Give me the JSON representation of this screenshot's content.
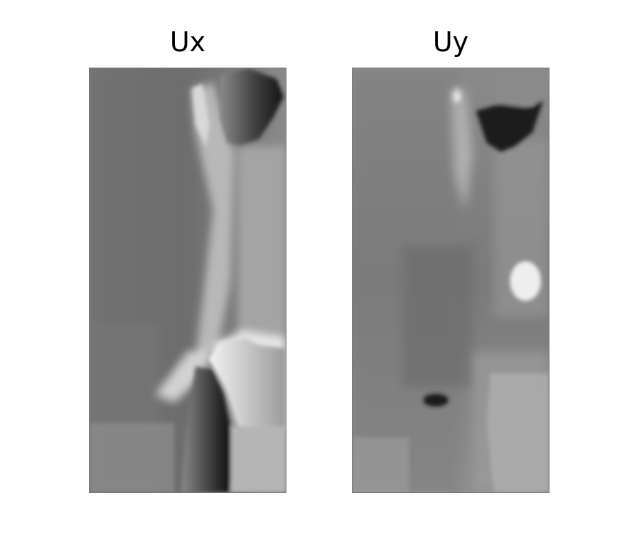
{
  "chart_data": [
    {
      "type": "heatmap",
      "title": "Ux",
      "colormap": "gray",
      "axes_visible": false,
      "colorbar": false
    },
    {
      "type": "heatmap",
      "title": "Uy",
      "colormap": "gray",
      "axes_visible": false,
      "colorbar": false
    }
  ]
}
